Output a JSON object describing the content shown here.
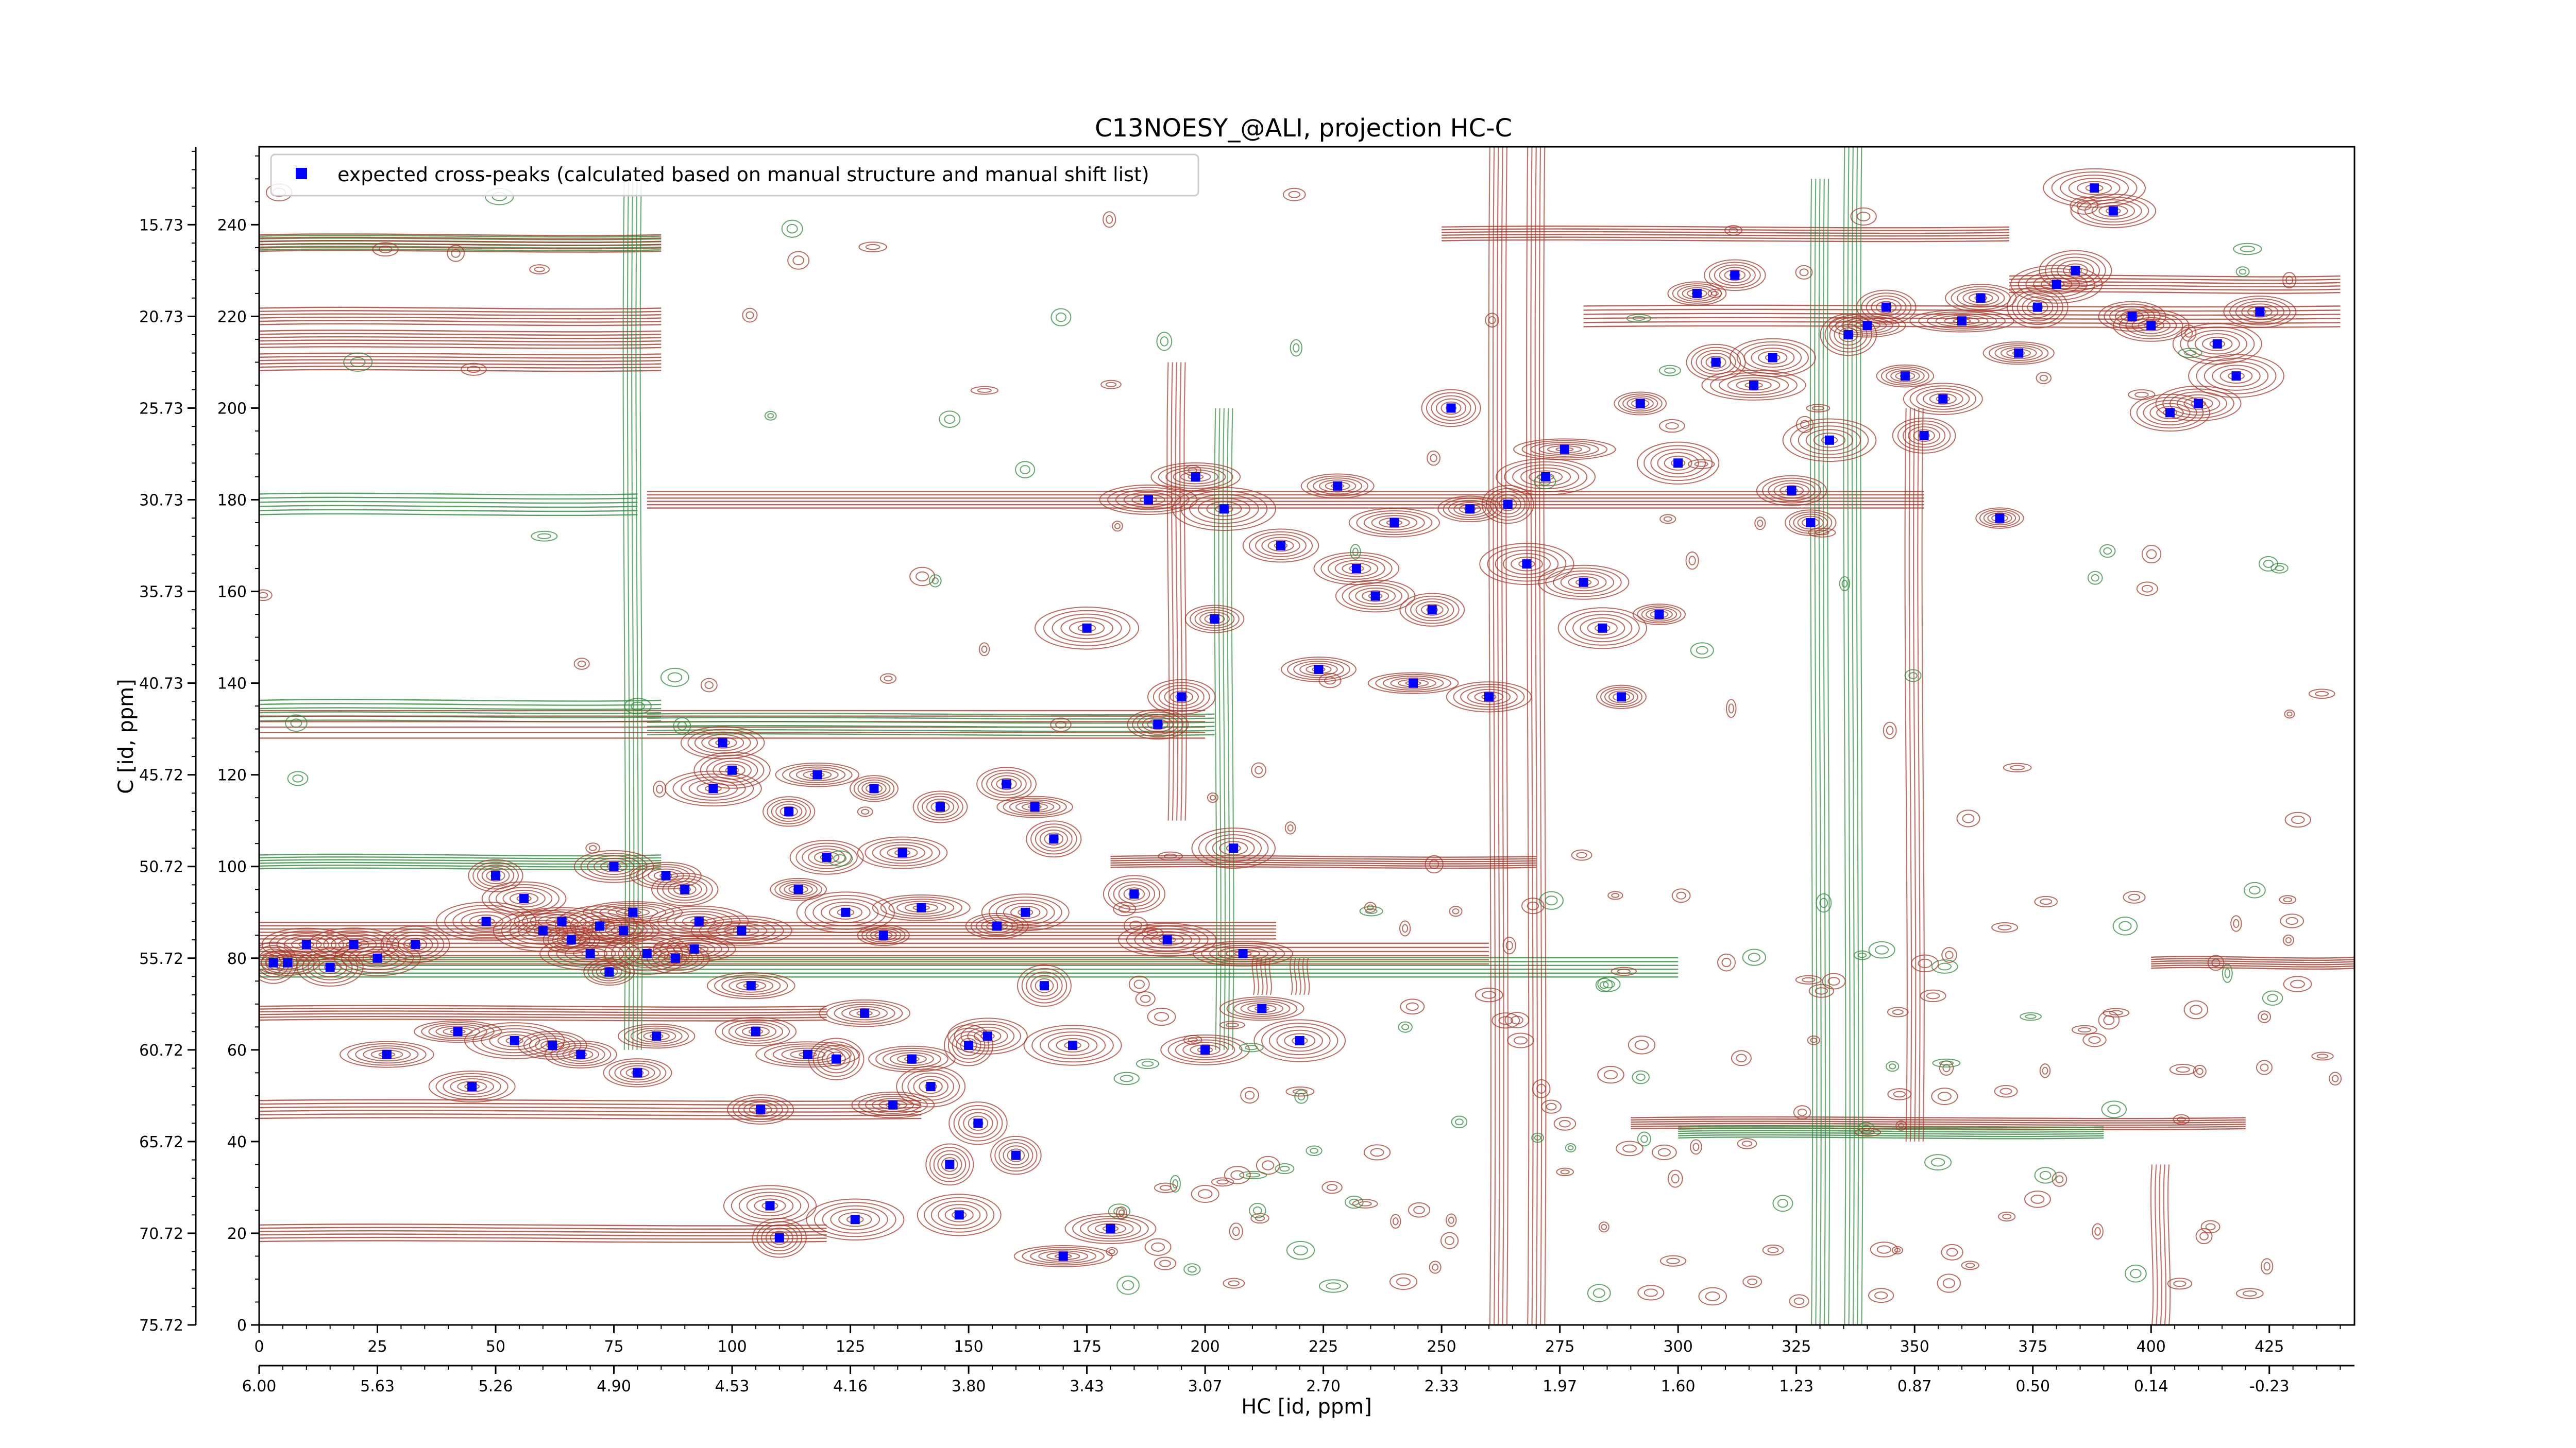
{
  "chart_data": {
    "type": "scatter",
    "title": "C13NOESY_@ALI, projection HC-C",
    "xlabel": "HC [id, ppm]",
    "ylabel": "C [id, ppm]",
    "x_ppm_tick_labels": [
      "6.00",
      "5.63",
      "5.26",
      "4.90",
      "4.53",
      "4.16",
      "3.80",
      "3.43",
      "3.07",
      "2.70",
      "2.33",
      "1.97",
      "1.60",
      "1.23",
      "0.87",
      "0.50",
      "0.14",
      "-0.23"
    ],
    "x_index_ticks": [
      0,
      25,
      50,
      75,
      100,
      125,
      150,
      175,
      200,
      225,
      250,
      275,
      300,
      325,
      350,
      375,
      400,
      425
    ],
    "y_ppm_tick_labels": [
      "15.73",
      "20.73",
      "25.73",
      "30.73",
      "35.73",
      "40.73",
      "45.72",
      "50.72",
      "55.72",
      "60.72",
      "65.72",
      "70.72",
      "75.72"
    ],
    "y_index_ticks": [
      0,
      20,
      40,
      60,
      80,
      100,
      120,
      140,
      160,
      180,
      200,
      220,
      240
    ],
    "xlim": [
      0,
      443
    ],
    "ylim": [
      0,
      257
    ],
    "legend": {
      "position": "top-left",
      "label": "expected cross-peaks (calculated based on manual structure and manual shift list)"
    },
    "colors": {
      "marker": "#0000ff",
      "positive_contour": "#a83a2a",
      "negative_contour": "#2e8b3a"
    },
    "series": [
      {
        "name": "expected cross-peaks (calculated based on manual structure and manual shift list)",
        "x": [
          3,
          6,
          10,
          15,
          20,
          25,
          27,
          33,
          42,
          45,
          48,
          50,
          54,
          56,
          60,
          62,
          64,
          66,
          68,
          70,
          72,
          74,
          75,
          77,
          79,
          80,
          82,
          84,
          86,
          88,
          90,
          92,
          93,
          96,
          98,
          100,
          102,
          104,
          105,
          106,
          108,
          110,
          112,
          114,
          116,
          118,
          120,
          122,
          124,
          126,
          128,
          130,
          132,
          134,
          136,
          138,
          140,
          142,
          144,
          146,
          148,
          150,
          152,
          154,
          156,
          158,
          160,
          162,
          164,
          166,
          168,
          170,
          172,
          175,
          180,
          185,
          188,
          190,
          192,
          195,
          198,
          200,
          202,
          204,
          206,
          208,
          212,
          216,
          220,
          224,
          228,
          232,
          236,
          240,
          244,
          248,
          252,
          256,
          260,
          264,
          268,
          272,
          276,
          280,
          284,
          288,
          292,
          296,
          300,
          304,
          308,
          312,
          316,
          320,
          324,
          328,
          332,
          336,
          340,
          344,
          348,
          352,
          356,
          360,
          364,
          368,
          372,
          376,
          380,
          384,
          388,
          392,
          396,
          400,
          404,
          410,
          414,
          418,
          423
        ],
        "y": [
          79,
          79,
          83,
          78,
          83,
          80,
          59,
          83,
          64,
          52,
          88,
          98,
          62,
          93,
          86,
          61,
          88,
          84,
          59,
          81,
          87,
          77,
          100,
          86,
          90,
          55,
          81,
          63,
          98,
          80,
          95,
          82,
          88,
          117,
          127,
          121,
          86,
          74,
          64,
          47,
          26,
          19,
          112,
          95,
          59,
          120,
          102,
          58,
          90,
          23,
          68,
          117,
          85,
          48,
          103,
          58,
          91,
          52,
          113,
          35,
          24,
          61,
          44,
          63,
          87,
          118,
          37,
          90,
          113,
          74,
          106,
          15,
          61,
          152,
          21,
          94,
          180,
          131,
          84,
          137,
          185,
          60,
          154,
          178,
          104,
          81,
          69,
          170,
          62,
          143,
          183,
          165,
          159,
          175,
          140,
          156,
          200,
          178,
          137,
          179,
          166,
          185,
          191,
          162,
          152,
          137,
          201,
          155,
          188,
          225,
          210,
          229,
          205,
          211,
          182,
          175,
          193,
          216,
          218,
          222,
          207,
          194,
          202,
          219,
          224,
          176,
          212,
          222,
          227,
          230,
          248,
          243,
          220,
          218,
          199,
          201,
          214,
          207,
          221
        ]
      }
    ],
    "contours": {
      "positive_color": "#a83a2a",
      "negative_color": "#2e8b3a"
    }
  }
}
